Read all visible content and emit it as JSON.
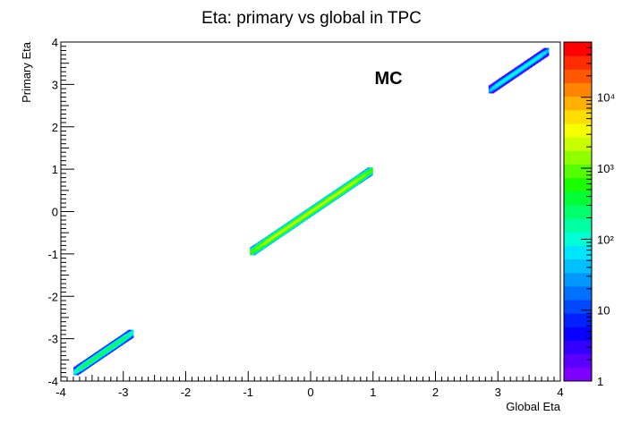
{
  "chart_data": {
    "type": "heatmap",
    "title": "Eta: primary vs global in TPC",
    "xlabel": "Global Eta",
    "ylabel": "Primary Eta",
    "annotation": "MC",
    "xlim": [
      -4,
      4
    ],
    "ylim": [
      -4,
      4
    ],
    "x_ticks": [
      "-4",
      "-3",
      "-2",
      "-1",
      "0",
      "1",
      "2",
      "3",
      "4"
    ],
    "y_ticks": [
      "-4",
      "-3",
      "-2",
      "-1",
      "0",
      "1",
      "2",
      "3",
      "4"
    ],
    "color_scale": "log",
    "color_range": [
      1,
      60000
    ],
    "colorbar_ticks": [
      {
        "value": 1,
        "label": "1"
      },
      {
        "value": 10,
        "label": "10"
      },
      {
        "value": 100,
        "label": "10²"
      },
      {
        "value": 1000,
        "label": "10³"
      },
      {
        "value": 10000,
        "label": "10⁴"
      }
    ],
    "palette": [
      "#7f00ff",
      "#5b00ff",
      "#3300ff",
      "#0a00ff",
      "#0020ff",
      "#0048ff",
      "#0070ff",
      "#0098ff",
      "#00c0ff",
      "#00e6ff",
      "#00ffd4",
      "#00ffa0",
      "#00ff6a",
      "#00ff34",
      "#1aff00",
      "#55ff00",
      "#90ff00",
      "#c8ff00",
      "#f5ff00",
      "#ffdd00",
      "#ffb000",
      "#ff8400",
      "#ff5800",
      "#ff2c00",
      "#ff0000"
    ],
    "bands": [
      {
        "x_range": [
          -3.8,
          -2.85
        ],
        "y_range": [
          -3.8,
          -2.85
        ],
        "peak_count": 300
      },
      {
        "x_range": [
          -0.97,
          0.97
        ],
        "y_range": [
          -0.97,
          0.97
        ],
        "peak_count": 2000
      },
      {
        "x_range": [
          2.85,
          3.8
        ],
        "y_range": [
          2.85,
          3.8
        ],
        "peak_count": 100
      }
    ]
  }
}
